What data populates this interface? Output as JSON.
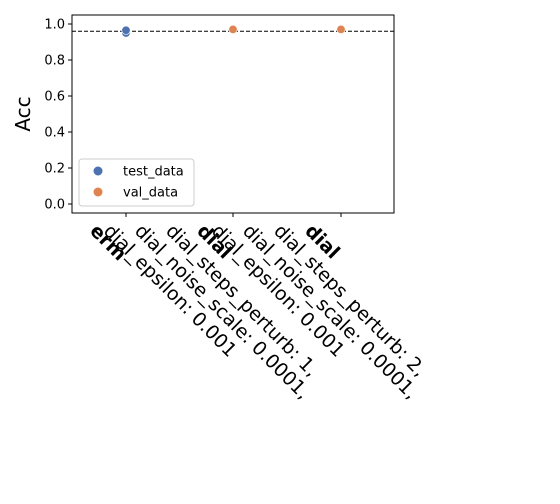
{
  "chart_data": {
    "type": "scatter",
    "title": "",
    "xlabel": "",
    "ylabel": "Acc",
    "ylim": [
      -0.05,
      1.05
    ],
    "yticks": [
      0.0,
      0.2,
      0.4,
      0.6,
      0.8,
      1.0
    ],
    "ytick_labels": [
      "0.0",
      "0.2",
      "0.4",
      "0.6",
      "0.8",
      "1.0"
    ],
    "categories": [
      {
        "bold": "erm",
        "lines": []
      },
      {
        "bold": "dial",
        "lines": [
          "dial_steps_perturb: 1,",
          "dial_noise_scale: 0.0001,",
          "dial_epsilon: 0.001"
        ]
      },
      {
        "bold": "dial",
        "lines": [
          "dial_steps_perturb: 2,",
          "dial_noise_scale: 0.0001,",
          "dial_epsilon: 0.001"
        ]
      }
    ],
    "series": [
      {
        "name": "test_data",
        "color": "#4c72b0",
        "points": [
          [
            0,
            0.95
          ],
          [
            0,
            0.965
          ]
        ]
      },
      {
        "name": "val_data",
        "color": "#dd8452",
        "points": [
          [
            1,
            0.97
          ],
          [
            2,
            0.97
          ]
        ]
      }
    ],
    "reference_line": {
      "y": 0.96,
      "style": "dashed",
      "color": "#000000"
    },
    "legend": {
      "position": "lower-left",
      "entries": [
        "test_data",
        "val_data"
      ]
    },
    "grid": false
  }
}
